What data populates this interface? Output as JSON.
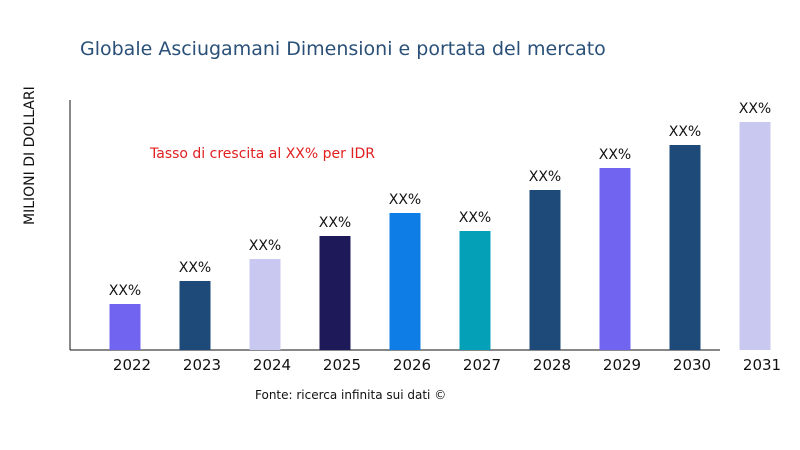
{
  "chart_data": {
    "type": "bar",
    "title": "Globale Asciugamani Dimensioni e portata del mercato",
    "xlabel": "",
    "ylabel": "MILIONI DI DOLLARI",
    "categories": [
      "2022",
      "2023",
      "2024",
      "2025",
      "2026",
      "2027",
      "2028",
      "2029",
      "2030",
      "2031"
    ],
    "values": [
      46,
      69,
      91,
      114,
      137,
      119,
      160,
      182,
      205,
      228
    ],
    "data_labels": [
      "XX%",
      "XX%",
      "XX%",
      "XX%",
      "XX%",
      "XX%",
      "XX%",
      "XX%",
      "XX%",
      "XX%"
    ],
    "colors": [
      "#7064f0",
      "#1e4a7a",
      "#c8c8f0",
      "#1e1a5a",
      "#0f7de6",
      "#04a0b8",
      "#1e4a7a",
      "#7064f0",
      "#1e4a7a",
      "#c8c8f0"
    ],
    "ylim": [
      0,
      250
    ],
    "grid": false,
    "annotation": "Tasso di crescita al XX% per IDR",
    "source": "Fonte: ricerca infinita sui dati ©"
  }
}
